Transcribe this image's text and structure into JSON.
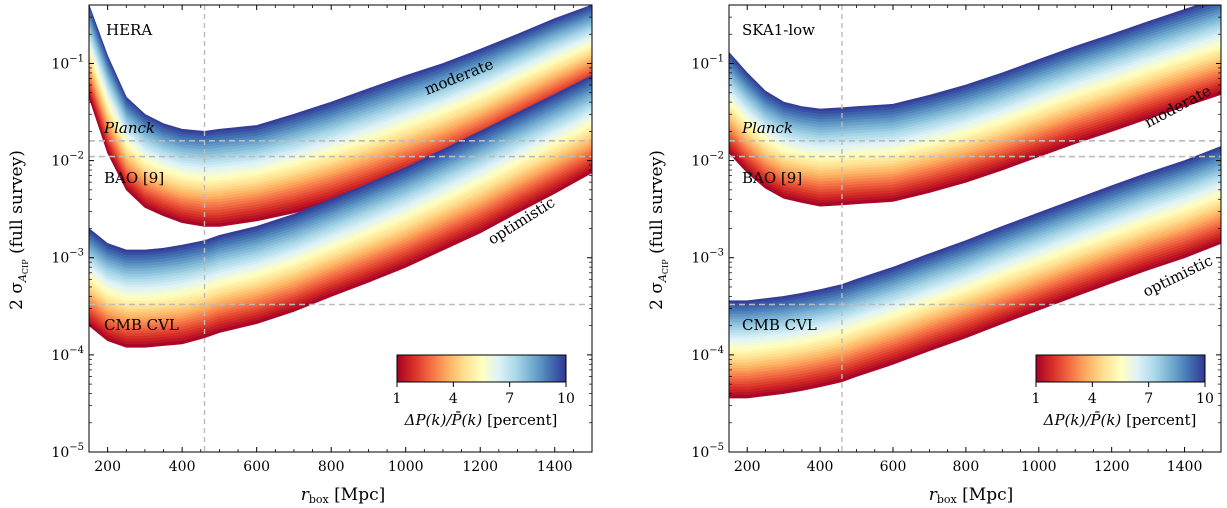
{
  "chart_data": [
    {
      "type": "area",
      "panel_label": "HERA",
      "xlabel_main": "r",
      "xlabel_sub": "box",
      "xlabel_unit": "[Mpc]",
      "ylabel_prefix": "2 σ",
      "ylabel_sub_a": "A",
      "ylabel_sub_b": "CIP",
      "ylabel_suffix": "(full survey)",
      "xlim": [
        150,
        1500
      ],
      "ylim": [
        1e-05,
        0.4
      ],
      "yscale": "log",
      "xticks": [
        200,
        400,
        600,
        800,
        1000,
        1200,
        1400
      ],
      "yticks": [
        {
          "value": 1e-05,
          "base": "10",
          "exp": "−5"
        },
        {
          "value": 0.0001,
          "base": "10",
          "exp": "−4"
        },
        {
          "value": 0.001,
          "base": "10",
          "exp": "−3"
        },
        {
          "value": 0.01,
          "base": "10",
          "exp": "−2"
        },
        {
          "value": 0.1,
          "base": "10",
          "exp": "−1"
        }
      ],
      "vline_x": 460,
      "hlines": [
        {
          "label": "Planck",
          "value": 0.016
        },
        {
          "label": "BAO [9]",
          "value": 0.011
        },
        {
          "label": "CMB CVL",
          "value": 0.00033
        }
      ],
      "bands": [
        {
          "label": "moderate",
          "x": [
            150,
            200,
            250,
            300,
            350,
            400,
            460,
            500,
            600,
            700,
            800,
            900,
            1000,
            1100,
            1200,
            1300,
            1400,
            1500
          ],
          "upper": [
            0.4,
            0.12,
            0.045,
            0.03,
            0.024,
            0.021,
            0.02,
            0.021,
            0.023,
            0.03,
            0.04,
            0.055,
            0.075,
            0.1,
            0.14,
            0.2,
            0.29,
            0.4
          ],
          "lower": [
            0.045,
            0.012,
            0.005,
            0.0033,
            0.0027,
            0.0023,
            0.0021,
            0.0021,
            0.0024,
            0.0029,
            0.0037,
            0.005,
            0.007,
            0.01,
            0.015,
            0.024,
            0.038,
            0.06
          ]
        },
        {
          "label": "optimistic",
          "x": [
            150,
            200,
            250,
            300,
            350,
            400,
            460,
            500,
            600,
            700,
            800,
            900,
            1000,
            1100,
            1200,
            1300,
            1400,
            1500
          ],
          "upper": [
            0.002,
            0.0014,
            0.0012,
            0.0012,
            0.00125,
            0.00135,
            0.0015,
            0.0017,
            0.0021,
            0.0028,
            0.004,
            0.0058,
            0.0085,
            0.013,
            0.02,
            0.031,
            0.048,
            0.075
          ],
          "lower": [
            0.0002,
            0.00014,
            0.00012,
            0.00012,
            0.000125,
            0.00013,
            0.00015,
            0.00017,
            0.00021,
            0.00028,
            0.0004,
            0.00056,
            0.0008,
            0.0012,
            0.0018,
            0.0029,
            0.0046,
            0.0075
          ]
        }
      ]
    },
    {
      "type": "area",
      "panel_label": "SKA1-low",
      "xlabel_main": "r",
      "xlabel_sub": "box",
      "xlabel_unit": "[Mpc]",
      "ylabel_prefix": "2 σ",
      "ylabel_sub_a": "A",
      "ylabel_sub_b": "CIP",
      "ylabel_suffix": "(full survey)",
      "xlim": [
        150,
        1500
      ],
      "ylim": [
        1e-05,
        0.4
      ],
      "yscale": "log",
      "xticks": [
        200,
        400,
        600,
        800,
        1000,
        1200,
        1400
      ],
      "yticks": [
        {
          "value": 1e-05,
          "base": "10",
          "exp": "−5"
        },
        {
          "value": 0.0001,
          "base": "10",
          "exp": "−4"
        },
        {
          "value": 0.001,
          "base": "10",
          "exp": "−3"
        },
        {
          "value": 0.01,
          "base": "10",
          "exp": "−2"
        },
        {
          "value": 0.1,
          "base": "10",
          "exp": "−1"
        }
      ],
      "vline_x": 460,
      "hlines": [
        {
          "label": "Planck",
          "value": 0.016
        },
        {
          "label": "BAO [9]",
          "value": 0.011
        },
        {
          "label": "CMB CVL",
          "value": 0.00033
        }
      ],
      "bands": [
        {
          "label": "moderate",
          "x": [
            150,
            200,
            250,
            300,
            350,
            400,
            460,
            500,
            600,
            700,
            800,
            900,
            1000,
            1100,
            1200,
            1300,
            1400,
            1500
          ],
          "upper": [
            0.13,
            0.08,
            0.052,
            0.04,
            0.036,
            0.034,
            0.035,
            0.036,
            0.038,
            0.047,
            0.06,
            0.08,
            0.11,
            0.15,
            0.2,
            0.27,
            0.36,
            0.48
          ],
          "lower": [
            0.012,
            0.0075,
            0.0052,
            0.0041,
            0.0037,
            0.0034,
            0.0035,
            0.0036,
            0.0038,
            0.0047,
            0.006,
            0.008,
            0.011,
            0.015,
            0.02,
            0.027,
            0.036,
            0.048
          ]
        },
        {
          "label": "optimistic",
          "x": [
            150,
            200,
            250,
            300,
            350,
            400,
            460,
            500,
            600,
            700,
            800,
            900,
            1000,
            1100,
            1200,
            1300,
            1400,
            1500
          ],
          "upper": [
            0.00036,
            0.00036,
            0.00038,
            0.0004,
            0.00043,
            0.00047,
            0.00053,
            0.0006,
            0.0008,
            0.0011,
            0.0015,
            0.0021,
            0.0029,
            0.004,
            0.0055,
            0.0075,
            0.01,
            0.014
          ],
          "lower": [
            3.6e-05,
            3.6e-05,
            3.8e-05,
            4e-05,
            4.3e-05,
            4.7e-05,
            5.3e-05,
            6e-05,
            8e-05,
            0.00011,
            0.00015,
            0.00021,
            0.00029,
            0.0004,
            0.00055,
            0.00075,
            0.001,
            0.0014
          ]
        }
      ]
    }
  ],
  "colorbar": {
    "ticks": [
      "1",
      "4",
      "7",
      "10"
    ],
    "tick_values": [
      1,
      4,
      7,
      10
    ],
    "range": [
      1,
      10
    ],
    "label_main": "ΔP(k)/P̄(k)",
    "label_unit": "[percent]",
    "colors": [
      "#a50026",
      "#d73027",
      "#f46d43",
      "#fdae61",
      "#fee090",
      "#ffffbf",
      "#e0f3f8",
      "#abd9e9",
      "#74add1",
      "#4575b4",
      "#313695"
    ]
  },
  "colors": {
    "refline": "#bbbbbb",
    "axis": "#000000"
  }
}
